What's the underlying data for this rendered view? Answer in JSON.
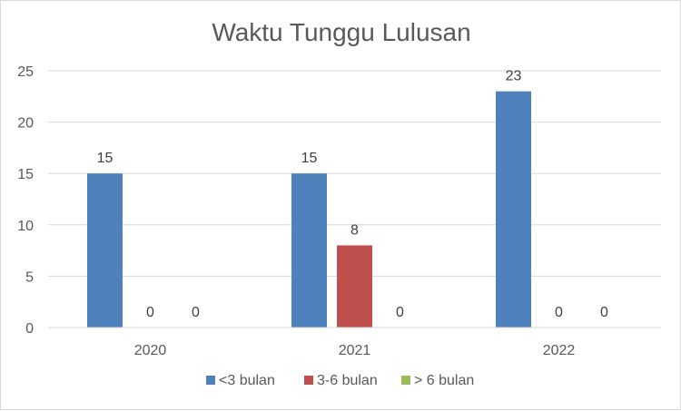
{
  "chart_data": {
    "type": "bar",
    "title": "Waktu Tunggu Lulusan",
    "categories": [
      "2020",
      "2021",
      "2022"
    ],
    "series": [
      {
        "name": "<3 bulan",
        "values": [
          15,
          15,
          23
        ],
        "color": "#4f81bd"
      },
      {
        "name": "3-6 bulan",
        "values": [
          0,
          8,
          0
        ],
        "color": "#c0504d"
      },
      {
        "name": "> 6 bulan",
        "values": [
          0,
          0,
          0
        ],
        "color": "#9bbb59"
      }
    ],
    "ylim": [
      0,
      25
    ],
    "yticks": [
      0,
      5,
      10,
      15,
      20,
      25
    ],
    "grid": true,
    "legend": "bottom",
    "data_labels": true
  }
}
